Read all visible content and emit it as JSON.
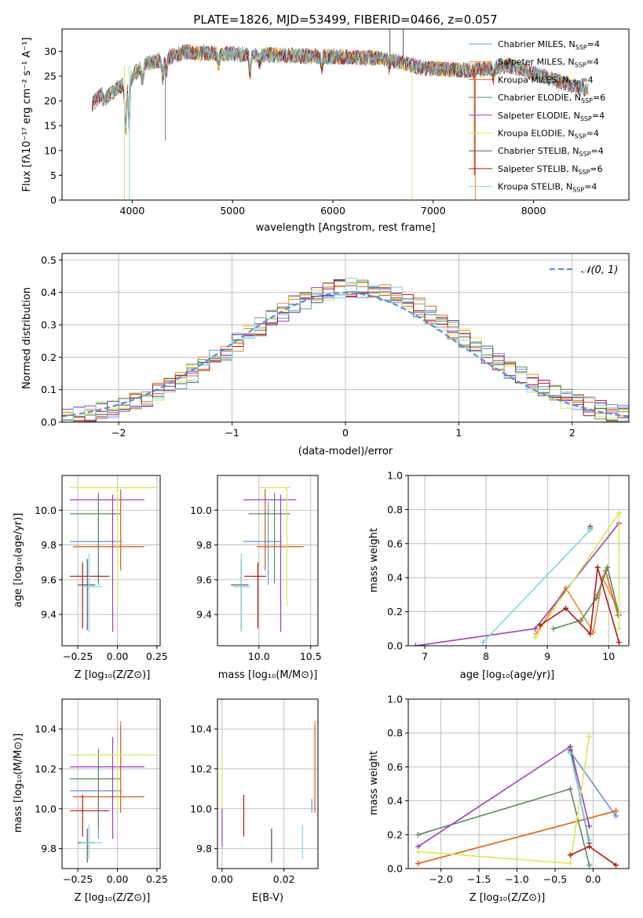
{
  "figure": {
    "title": "PLATE=1826, MJD=53499, FIBERID=0466, z=0.057",
    "spectrum": {
      "xlabel": "wavelength [Angstrom, rest frame]",
      "ylabel": "Flux [fλ10⁻¹⁷ erg cm⁻² s⁻¹ A⁻¹]",
      "xlim": [
        3300,
        8950
      ],
      "ylim": [
        0,
        34.5
      ],
      "xticks": [
        4000,
        5000,
        6000,
        7000,
        8000
      ],
      "yticks": [
        0,
        5,
        10,
        15,
        20,
        25,
        30
      ]
    },
    "residuals": {
      "xlabel": "(data-model)/error",
      "ylabel": "Normed distribution",
      "legend": "𝒩(0, 1)",
      "xlim": [
        -2.5,
        2.5
      ],
      "ylim": [
        0,
        0.52
      ],
      "xticks": [
        -2,
        -1,
        0,
        1,
        2
      ],
      "yticks": [
        0.0,
        0.1,
        0.2,
        0.3,
        0.4,
        0.5
      ]
    },
    "age_z": {
      "xlabel": "Z [log₁₀(Z/Z⊙)]",
      "ylabel": "age  [log₁₀(age/yr)]"
    },
    "age_mass": {
      "xlabel": "mass [log₁₀(M/M⊙)]"
    },
    "wt_age": {
      "xlabel": "age  [log₁₀(age/yr)]",
      "ylabel": "mass weight"
    },
    "mass_z": {
      "xlabel": "Z [log₁₀(Z/Z⊙)]",
      "ylabel": "mass [log₁₀(M/M⊙)]"
    },
    "mass_ebv": {
      "xlabel": "E(B-V)"
    },
    "wt_z": {
      "xlabel": "Z [log₁₀(Z/Z⊙)]",
      "ylabel": "mass weight"
    }
  },
  "chart_data": {
    "type": "line",
    "models": [
      {
        "name": "Chabrier MILES, N",
        "nssp": "=4",
        "color": "#6e8fd6",
        "Z": -0.12,
        "Zlo": -0.3,
        "Zhi": 0.03,
        "age": 9.82,
        "ageLo": 9.57,
        "ageHi": 10.05,
        "mass": 10.09,
        "massLo": 9.85,
        "massHi": 10.22,
        "ebv": 0.029,
        "ebvLo": 9.98,
        "ebvHi": 10.05,
        "wt_age": [
          [
            9.7,
            0.69
          ]
        ],
        "wt_z": [
          [
            -0.3,
            0.69
          ],
          [
            0.3,
            0.31
          ]
        ]
      },
      {
        "name": "Salpeter MILES, N",
        "nssp": "=4",
        "color": "#e78b37",
        "Z": 0.02,
        "Zlo": -0.28,
        "Zhi": 0.17,
        "age": 9.79,
        "ageLo": 9.65,
        "ageHi": 10.12,
        "mass": 10.06,
        "massLo": 9.98,
        "massHi": 10.44,
        "ebv": 0.03,
        "ebvLo": 9.98,
        "ebvHi": 10.44,
        "wt_age": [
          [
            8.82,
            0.07
          ],
          [
            9.3,
            0.34
          ],
          [
            9.75,
            0.08
          ],
          [
            9.9,
            0.4
          ],
          [
            10.17,
            0.2
          ]
        ],
        "wt_z": [
          [
            -2.3,
            0.03
          ],
          [
            0.3,
            0.34
          ]
        ]
      },
      {
        "name": "Kroupa MILES, N",
        "nssp": "=4",
        "color": "#d86a1f",
        "Z": 0.02,
        "Zlo": -0.28,
        "Zhi": 0.17,
        "age": 9.79,
        "ageLo": 9.66,
        "ageHi": 10.12,
        "mass": 10.06,
        "massLo": 9.98,
        "massHi": 10.42,
        "ebv": 0.03,
        "ebvLo": 9.98,
        "ebvHi": 10.42,
        "wt_age": [
          [
            9.82,
            0.3
          ],
          [
            9.95,
            0.44
          ],
          [
            10.15,
            0.18
          ]
        ],
        "wt_z": [
          [
            -2.3,
            0.03
          ],
          [
            0.3,
            0.34
          ]
        ]
      },
      {
        "name": "Chabrier ELODIE, N",
        "nssp": "=6",
        "color": "#5f8a5f",
        "Z": -0.12,
        "Zlo": -0.3,
        "Zhi": 0.02,
        "age": 9.98,
        "ageLo": 9.58,
        "ageHi": 10.1,
        "mass": 10.15,
        "massLo": 9.9,
        "massHi": 10.3,
        "ebv": 0.016,
        "ebvLo": 9.74,
        "ebvHi": 9.9,
        "wt_age": [
          [
            9.1,
            0.1
          ],
          [
            9.55,
            0.15
          ],
          [
            9.8,
            0.28
          ],
          [
            9.98,
            0.46
          ],
          [
            10.17,
            0.18
          ]
        ],
        "wt_z": [
          [
            -2.3,
            0.2
          ],
          [
            -0.3,
            0.47
          ],
          [
            -0.05,
            0.02
          ]
        ]
      },
      {
        "name": "Salpeter ELODIE, N",
        "nssp": "=4",
        "color": "#9a3fbf",
        "Z": -0.03,
        "Zlo": -0.3,
        "Zhi": 0.17,
        "age": 10.06,
        "ageLo": 9.3,
        "ageHi": 10.09,
        "mass": 10.21,
        "massLo": 9.85,
        "massHi": 10.36,
        "ebv": 0.0,
        "ebvLo": 9.81,
        "ebvHi": 10.02,
        "wt_age": [
          [
            6.85,
            0.0
          ],
          [
            8.8,
            0.1
          ],
          [
            10.17,
            0.72
          ]
        ],
        "wt_z": [
          [
            -2.3,
            0.13
          ],
          [
            -0.3,
            0.72
          ],
          [
            -0.05,
            0.25
          ]
        ]
      },
      {
        "name": "Kroupa ELODIE, N",
        "nssp": "=4",
        "color": "#d6e858",
        "Z": 0.0,
        "Zlo": -0.3,
        "Zhi": 0.25,
        "age": 10.13,
        "ageLo": 9.45,
        "ageHi": 10.13,
        "mass": 10.27,
        "massLo": 10.0,
        "massHi": 10.3,
        "ebv": 0.0,
        "ebvLo": 10.0,
        "ebvHi": 10.28,
        "wt_age": [
          [
            8.8,
            0.05
          ],
          [
            10.17,
            0.78
          ],
          [
            10.17,
            0.1
          ]
        ],
        "wt_z": [
          [
            -2.3,
            0.1
          ],
          [
            -0.3,
            0.03
          ],
          [
            -0.05,
            0.78
          ]
        ]
      },
      {
        "name": "Chabrier STELIB, N",
        "nssp": "=4",
        "color": "#5a5a5a",
        "Z": -0.19,
        "Zlo": -0.25,
        "Zhi": -0.14,
        "age": 9.57,
        "ageLo": 9.31,
        "ageHi": 9.72,
        "mass": 9.83,
        "massLo": 9.73,
        "massHi": 9.9,
        "ebv": 0.016,
        "ebvLo": 9.73,
        "ebvHi": 9.9,
        "wt_age": [
          [
            9.7,
            0.7
          ]
        ],
        "wt_z": [
          [
            -0.3,
            0.7
          ],
          [
            -0.05,
            0.15
          ]
        ]
      },
      {
        "name": "Salpeter STELIB, N",
        "nssp": "=6",
        "color": "#a81c1c",
        "Z": -0.22,
        "Zlo": -0.3,
        "Zhi": -0.05,
        "age": 9.62,
        "ageLo": 9.32,
        "ageHi": 9.7,
        "mass": 9.99,
        "massLo": 9.86,
        "massHi": 10.07,
        "ebv": 0.007,
        "ebvLo": 9.86,
        "ebvHi": 10.07,
        "wt_age": [
          [
            8.88,
            0.12
          ],
          [
            9.3,
            0.22
          ],
          [
            9.7,
            0.07
          ],
          [
            9.82,
            0.46
          ],
          [
            10.17,
            0.02
          ]
        ],
        "wt_z": [
          [
            -0.3,
            0.08
          ],
          [
            -0.05,
            0.13
          ],
          [
            0.3,
            0.02
          ]
        ]
      },
      {
        "name": "Kroupa STELIB, N",
        "nssp": "=4",
        "color": "#7fd4d8",
        "Z": -0.18,
        "Zlo": -0.23,
        "Zhi": -0.1,
        "age": 9.56,
        "ageLo": 9.3,
        "ageHi": 9.75,
        "mass": 9.83,
        "massLo": 9.75,
        "massHi": 9.92,
        "ebv": 0.026,
        "ebvLo": 9.75,
        "ebvHi": 9.92,
        "wt_age": [
          [
            7.95,
            0.02
          ],
          [
            9.7,
            0.68
          ]
        ],
        "wt_z": [
          [
            -0.3,
            0.68
          ],
          [
            -0.05,
            0.17
          ]
        ]
      }
    ]
  }
}
